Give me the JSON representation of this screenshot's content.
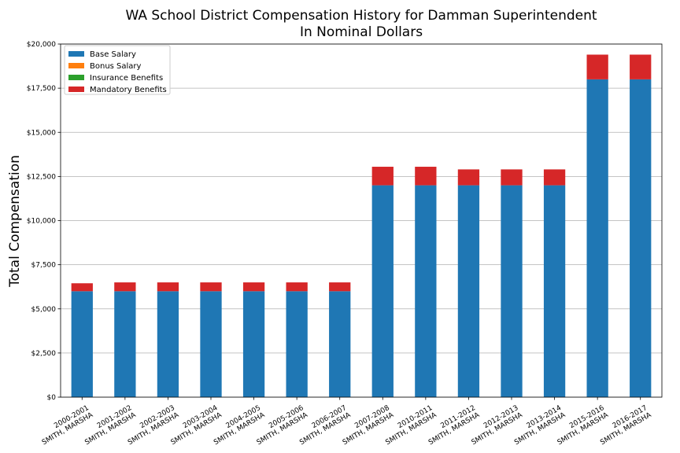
{
  "chart_data": {
    "type": "bar",
    "stacked": true,
    "title": [
      "WA School District Compensation History for Damman Superintendent",
      "In Nominal Dollars"
    ],
    "xlabel": "",
    "ylabel": "Total Compensation",
    "ylim": [
      0,
      20000
    ],
    "yticks": [
      0,
      2500,
      5000,
      7500,
      10000,
      12500,
      15000,
      17500,
      20000
    ],
    "ytick_labels": [
      "$0",
      "$2,500",
      "$5,000",
      "$7,500",
      "$10,000",
      "$12,500",
      "$15,000",
      "$17,500",
      "$20,000"
    ],
    "grid": "horizontal",
    "legend_position": "top-left",
    "categories": [
      [
        "2000-2001",
        "SMITH, MARSHA"
      ],
      [
        "2001-2002",
        "SMITH, MARSHA"
      ],
      [
        "2002-2003",
        "SMITH, MARSHA"
      ],
      [
        "2003-2004",
        "SMITH, MARSHA"
      ],
      [
        "2004-2005",
        "SMITH, MARSHA"
      ],
      [
        "2005-2006",
        "SMITH, MARSHA"
      ],
      [
        "2006-2007",
        "SMITH, MARSHA"
      ],
      [
        "2007-2008",
        "SMITH, MARSHA"
      ],
      [
        "2010-2011",
        "SMITH, MARSHA"
      ],
      [
        "2011-2012",
        "SMITH, MARSHA"
      ],
      [
        "2012-2013",
        "SMITH, MARSHA"
      ],
      [
        "2013-2014",
        "SMITH, MARSHA"
      ],
      [
        "2015-2016",
        "SMITH, MARSHA"
      ],
      [
        "2016-2017",
        "SMITH, MARSHA"
      ]
    ],
    "series": [
      {
        "name": "Base Salary",
        "color": "#1f77b4",
        "values": [
          6000,
          6000,
          6000,
          6000,
          6000,
          6000,
          6000,
          12000,
          12000,
          12000,
          12000,
          12000,
          18000,
          18000
        ]
      },
      {
        "name": "Bonus Salary",
        "color": "#ff7f0e",
        "values": [
          0,
          0,
          0,
          0,
          0,
          0,
          0,
          0,
          0,
          0,
          0,
          0,
          0,
          0
        ]
      },
      {
        "name": "Insurance Benefits",
        "color": "#2ca02c",
        "values": [
          0,
          0,
          0,
          0,
          0,
          0,
          0,
          0,
          0,
          0,
          0,
          0,
          0,
          0
        ]
      },
      {
        "name": "Mandatory Benefits",
        "color": "#d62728",
        "values": [
          450,
          500,
          500,
          500,
          500,
          500,
          500,
          1050,
          1050,
          900,
          900,
          900,
          1400,
          1400
        ]
      }
    ]
  }
}
